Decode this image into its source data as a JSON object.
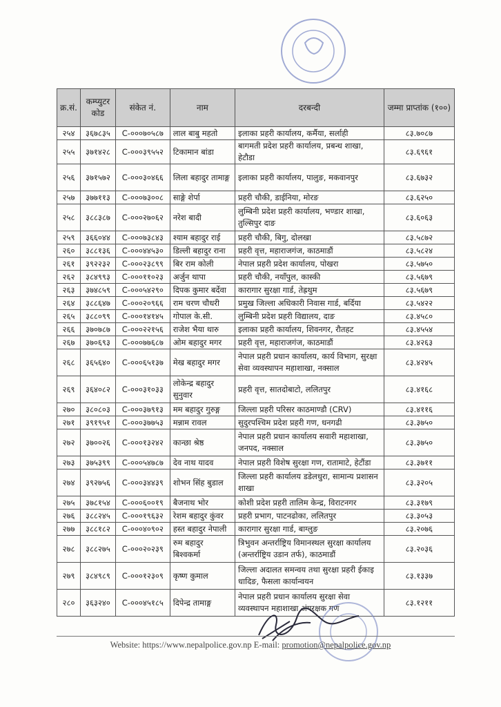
{
  "stamp_text": "नेपाल सरकार गृह मन्त्रालय नेपाल प्रहरी प्रधान कार्यालय पदपूर्ति सचिवालय नक्साल, काठमाडौं",
  "table": {
    "headers": [
      "क्र.सं.",
      "कम्प्युटर कोड",
      "संकेत नं.",
      "नाम",
      "दरबन्दी",
      "जम्मा प्राप्तांक (१००)"
    ],
    "rows": [
      {
        "sn": "२५४",
        "code": "३६७८३५",
        "symbol": "C-०००७०५८७",
        "name": "लाल बाबु महतो",
        "posting": "इलाका प्रहरी कार्यालय, कर्मैया, सर्लाही",
        "score": "८३.७०८७"
      },
      {
        "sn": "२५५",
        "code": "३७१४२८",
        "symbol": "C-०००३९५५२",
        "name": "टिकामान बांडा",
        "posting": "बागमती प्रदेश प्रहरी कार्यालय, प्रबन्ध शाखा, हेटौडा",
        "score": "८३.६९६१"
      },
      {
        "sn": "२५६",
        "code": "३७१५७२",
        "symbol": "C-०००३०४६६",
        "name": "लिला बहादुर तामाङ्ग",
        "posting": "इलाका प्रहरी कार्यालय, पालुङ, मकवानपुर",
        "score": "८३.६७३२"
      },
      {
        "sn": "२५७",
        "code": "३७७११३",
        "symbol": "C-०००७३००८",
        "name": "साङ्गे शेर्पा",
        "posting": "प्रहरी चौकी, डाईनिया, मोरङ",
        "score": "८३.६२५०"
      },
      {
        "sn": "२५८",
        "code": "३८८३८७",
        "symbol": "C-०००२७०६२",
        "name": "नरेश बादी",
        "posting": "लुम्बिनी प्रदेश प्रहरी कार्यालय, भण्डार शाखा, तुल्सिपुर दाङ",
        "score": "८३.६०६३"
      },
      {
        "sn": "२५९",
        "code": "३६६०४४",
        "symbol": "C-०००७३८४३",
        "name": "श्याम बहादुर राई",
        "posting": "प्रहरी चौकी, बिगु, दोलखा",
        "score": "८३.५८७२"
      },
      {
        "sn": "२६०",
        "code": "३८८१३६",
        "symbol": "C-०००४४५३०",
        "name": "डिल्ली बहादुर राना",
        "posting": "प्रहरी वृत्त, महाराजगंज, काठमाडौं",
        "score": "८३.५८२४"
      },
      {
        "sn": "२६१",
        "code": "३९२२३२",
        "symbol": "C-०००२३८९९",
        "name": "बिर राम कोली",
        "posting": "नेपाल प्रहरी प्रदेश कार्यालय, पोखरा",
        "score": "८३.५७५०"
      },
      {
        "sn": "२६२",
        "code": "३८४९९३",
        "symbol": "C-०००११०२३",
        "name": "अर्जुन थापा",
        "posting": "प्रहरी चौकी, नयाँपुल, कास्की",
        "score": "८३.५६७९"
      },
      {
        "sn": "२६३",
        "code": "३७४८५९",
        "symbol": "C-०००५४२९०",
        "name": "दिपक कुमार बर्देवा",
        "posting": "कारागार सुरक्षा गार्ड, तेह्रथुम",
        "score": "८३.५६७९"
      },
      {
        "sn": "२६४",
        "code": "३८८६४७",
        "symbol": "C-०००२०९६६",
        "name": "राम चरण चौधरी",
        "posting": "प्रमुख जिल्ला अधिकारी निवास गार्ड, बर्दिया",
        "score": "८३.५४२२"
      },
      {
        "sn": "२६५",
        "code": "३८८०९९",
        "symbol": "C-०००१४१४५",
        "name": "गोपाल के.सी.",
        "posting": "लुम्बिनी प्रदेश प्रहरी विद्यालय, दाङ",
        "score": "८३.४५८०"
      },
      {
        "sn": "२६६",
        "code": "३७०७८७",
        "symbol": "C-०००२२१५६",
        "name": "राजेश भैया थारु",
        "posting": "इलाका प्रहरी कार्यालय, शिवनगर, रौतहट",
        "score": "८३.४५५४"
      },
      {
        "sn": "२६७",
        "code": "३७०६९३",
        "symbol": "C-०००७७६८७",
        "name": "ओम बहादुर मगर",
        "posting": "प्रहरी वृत्त, महाराजगंज, काठमाडौं",
        "score": "८३.४२६३"
      },
      {
        "sn": "२६८",
        "code": "३६५६४०",
        "symbol": "C-०००६५१३७",
        "name": "मेख बहादुर मगर",
        "posting": "नेपाल प्रहरी प्रधान कार्यालय, कार्य विभाग, सुरक्षा सेवा व्यवस्थापन महाशाखा, नक्साल",
        "score": "८३.४२४५"
      },
      {
        "sn": "२६९",
        "code": "३६४०८२",
        "symbol": "C-०००३१०३३",
        "name": "लोकेन्द्र बहादुर सुनुवार",
        "posting": "प्रहरी वृत्त, सातदोबाटो, ललितपुर",
        "score": "८३.४१६८"
      },
      {
        "sn": "२७०",
        "code": "३८०८०३",
        "symbol": "C-०००३७९१३",
        "name": "मम बहादुर गुरुङ्ग",
        "posting": "जिल्ला प्रहरी परिसर काठमाण्डौ (CRV)",
        "score": "८३.४११६"
      },
      {
        "sn": "२७१",
        "code": "३९१९५१",
        "symbol": "C-०००३७७५३",
        "name": "मन्नाम रावल",
        "posting": "सुदुरपश्चिम प्रदेश प्रहरी गण, धनगढी",
        "score": "८३.३७५०"
      },
      {
        "sn": "२७२",
        "code": "३७००२६",
        "symbol": "C-०००१३२४२",
        "name": "कान्छा श्रेष्ठ",
        "posting": "नेपाल प्रहरी प्रधान कार्यालय सवारी महाशाखा, जनपद, नक्साल",
        "score": "८३.३७५०"
      },
      {
        "sn": "२७३",
        "code": "३७५३९९",
        "symbol": "C-०००५४७८७",
        "name": "देव नाथ यादव",
        "posting": "नेपाल प्रहरी विशेष सुरक्षा गण, रातामाटे, हेटौंडा",
        "score": "८३.३७११"
      },
      {
        "sn": "२७४",
        "code": "३९२७५६",
        "symbol": "C-०००३४४३९",
        "name": "शोभन सिंह बुडाल",
        "posting": "जिल्ला प्रहरी कार्यालय डडेलधुरा, सामान्य प्रशासन शाखा",
        "score": "८३.३२०५"
      },
      {
        "sn": "२७५",
        "code": "३७८१५४",
        "symbol": "C-०००६००१९",
        "name": "बैजनाथ भोर",
        "posting": "कोशी प्रदेश प्रहरी तालिम केन्द्र, विराटनगर",
        "score": "८३.३१७९"
      },
      {
        "sn": "२७६",
        "code": "३८८२४५",
        "symbol": "C-०००१९६३२",
        "name": "रेशम बहादुर कुंवर",
        "posting": "प्रहरी प्रभाग, पाटनढोका, ललितपुर",
        "score": "८३.३०५३"
      },
      {
        "sn": "२७७",
        "code": "३८८१८२",
        "symbol": "C-०००४०९०२",
        "name": "हस्त बहादुर नेपाली",
        "posting": "कारागार सुरक्षा गार्ड, बाग्लुङ",
        "score": "८३.२०७६"
      },
      {
        "sn": "२७८",
        "code": "३८८२७५",
        "symbol": "C-०००२०२३९",
        "name": "रुम बहादुर बिश्वकर्मा",
        "posting": "त्रिभुवन अन्तर्राष्ट्रिय विमानस्थल सुरक्षा कार्यालय (अन्तर्राष्ट्रिय उडान तर्फ), काठमाडौं",
        "score": "८३.२०३६"
      },
      {
        "sn": "२७९",
        "code": "३८४९८९",
        "symbol": "C-०००१२३०९",
        "name": "कृष्ण कुमाल",
        "posting": "जिल्ला अदालत समन्वय तथा सुरक्षा प्रहरी ईकाइ धादिङ, फैसला कार्यान्वयन",
        "score": "८३.१३३७"
      },
      {
        "sn": "२८०",
        "code": "३६३२४०",
        "symbol": "C-०००४५१८५",
        "name": "दिपेन्द्र तामाङ्ग",
        "posting": "नेपाल प्रहरी प्रधान कार्यालय सुरक्षा सेवा व्यवस्थापन महाशाखा अंगरक्षक गण",
        "score": "८३.१२११"
      }
    ]
  },
  "footer": {
    "website_label": "Website: https://www.nepalpolice.gov.np",
    "email_label": "E-mail:",
    "email": "promotion@nepalpolice.gov.np"
  },
  "colors": {
    "stamp": "#6f7fbf",
    "header_bg": "#cfcfcf"
  }
}
